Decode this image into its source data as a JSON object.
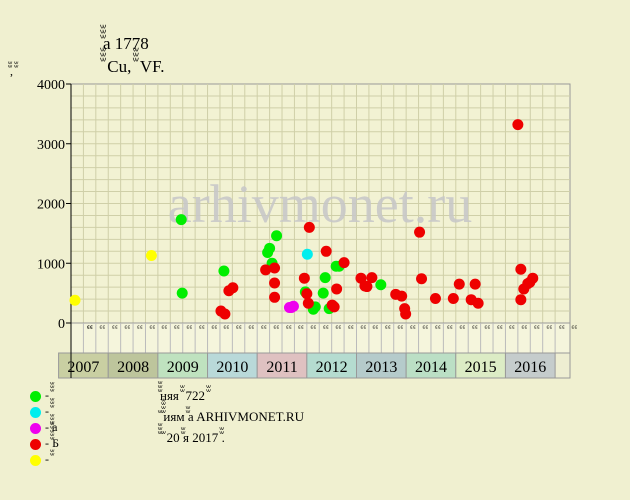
{
  "header": {
    "line1": "ꙻꙻꙻa 1778",
    "line2": "ꙻꙻꙻ Cu, ꙻꙻꙻ VF."
  },
  "y_unit_label": "ꙻꙻ, ꙻꙻ",
  "watermark": "arhivmonet.ru",
  "legend": [
    {
      "label": "- ꙻꙻꙻ",
      "color": "#00ee00"
    },
    {
      "label": "- ꙻꙻꙻ",
      "color": "#00eeee"
    },
    {
      "label": "- ꙻꙻꙻa",
      "color": "#ee00ee"
    },
    {
      "label": "- ꙻꙻꙻꙻꙻБ",
      "color": "#ee0000"
    },
    {
      "label": "- ꙻꙻ",
      "color": "#ffff00"
    }
  ],
  "notes": [
    "ꙻꙻꙻняя ꙻꙻ 722 ꙻꙻ",
    "ꙻ ꙻꙻꙻꙻиям ꙻꙻa ARHIVMONET.RU",
    "ꙻꙻꙻ ꙻ 20 ꙻꙻя 2017 ꙻꙻ."
  ],
  "chart_data": {
    "type": "scatter",
    "ylim": [
      0,
      4000
    ],
    "yticks": [
      0,
      1000,
      2000,
      3000,
      4000
    ],
    "xlim": [
      2006.5,
      2016.55
    ],
    "years": [
      "2007",
      "2008",
      "2009",
      "2010",
      "2011",
      "2012",
      "2013",
      "2014",
      "2015",
      "2016"
    ],
    "year_colors": [
      "#c9cfa2",
      "#bdc59c",
      "#bfe2bf",
      "#b9d9d9",
      "#dfc1c1",
      "#b5dcd0",
      "#b5cbcb",
      "#bbdfc5",
      "#dcecc5",
      "#c5cccc"
    ],
    "quarter_labels": [
      "ꙻꙻ",
      "ꙻꙻ",
      "ꙻꙻ",
      "ꙻꙻ"
    ],
    "series": [
      {
        "name": "- ꙻꙻ",
        "color": "#ffff00",
        "points": [
          [
            2006.58,
            380
          ],
          [
            2008.12,
            1130
          ]
        ]
      },
      {
        "name": "- ꙻꙻꙻ",
        "color": "#00ee00",
        "points": [
          [
            2008.72,
            1730
          ],
          [
            2008.74,
            500
          ],
          [
            2009.58,
            870
          ],
          [
            2010.46,
            1180
          ],
          [
            2010.5,
            1250
          ],
          [
            2010.55,
            1000
          ],
          [
            2010.64,
            1460
          ],
          [
            2011.22,
            520
          ],
          [
            2011.38,
            230
          ],
          [
            2011.42,
            270
          ],
          [
            2011.58,
            500
          ],
          [
            2011.62,
            760
          ],
          [
            2011.7,
            240
          ],
          [
            2011.84,
            950
          ],
          [
            2011.9,
            950
          ],
          [
            2012.74,
            640
          ]
        ]
      },
      {
        "name": "- ꙻꙻꙻ",
        "color": "#00eeee",
        "points": [
          [
            2011.26,
            1150
          ]
        ]
      },
      {
        "name": "- ꙻꙻꙻa",
        "color": "#ee00ee",
        "points": [
          [
            2010.9,
            260
          ],
          [
            2010.94,
            260
          ],
          [
            2010.98,
            280
          ]
        ]
      },
      {
        "name": "- ꙻꙻꙻꙻꙻБ",
        "color": "#ee0000",
        "points": [
          [
            2009.52,
            200
          ],
          [
            2009.6,
            150
          ],
          [
            2009.68,
            540
          ],
          [
            2009.76,
            590
          ],
          [
            2010.42,
            890
          ],
          [
            2010.6,
            920
          ],
          [
            2010.6,
            670
          ],
          [
            2010.6,
            430
          ],
          [
            2011.2,
            750
          ],
          [
            2011.25,
            490
          ],
          [
            2011.28,
            330
          ],
          [
            2011.3,
            1600
          ],
          [
            2011.64,
            1200
          ],
          [
            2011.76,
            300
          ],
          [
            2011.8,
            270
          ],
          [
            2011.85,
            570
          ],
          [
            2012.0,
            1010
          ],
          [
            2012.34,
            750
          ],
          [
            2012.42,
            620
          ],
          [
            2012.46,
            610
          ],
          [
            2012.56,
            760
          ],
          [
            2013.04,
            480
          ],
          [
            2013.16,
            450
          ],
          [
            2013.22,
            240
          ],
          [
            2013.24,
            150
          ],
          [
            2013.52,
            1520
          ],
          [
            2013.56,
            740
          ],
          [
            2013.84,
            410
          ],
          [
            2014.2,
            410
          ],
          [
            2014.32,
            650
          ],
          [
            2014.56,
            390
          ],
          [
            2014.64,
            650
          ],
          [
            2014.7,
            330
          ],
          [
            2015.5,
            3320
          ],
          [
            2015.56,
            900
          ],
          [
            2015.56,
            390
          ],
          [
            2015.62,
            570
          ],
          [
            2015.7,
            660
          ],
          [
            2015.74,
            680
          ],
          [
            2015.8,
            750
          ]
        ]
      }
    ]
  }
}
